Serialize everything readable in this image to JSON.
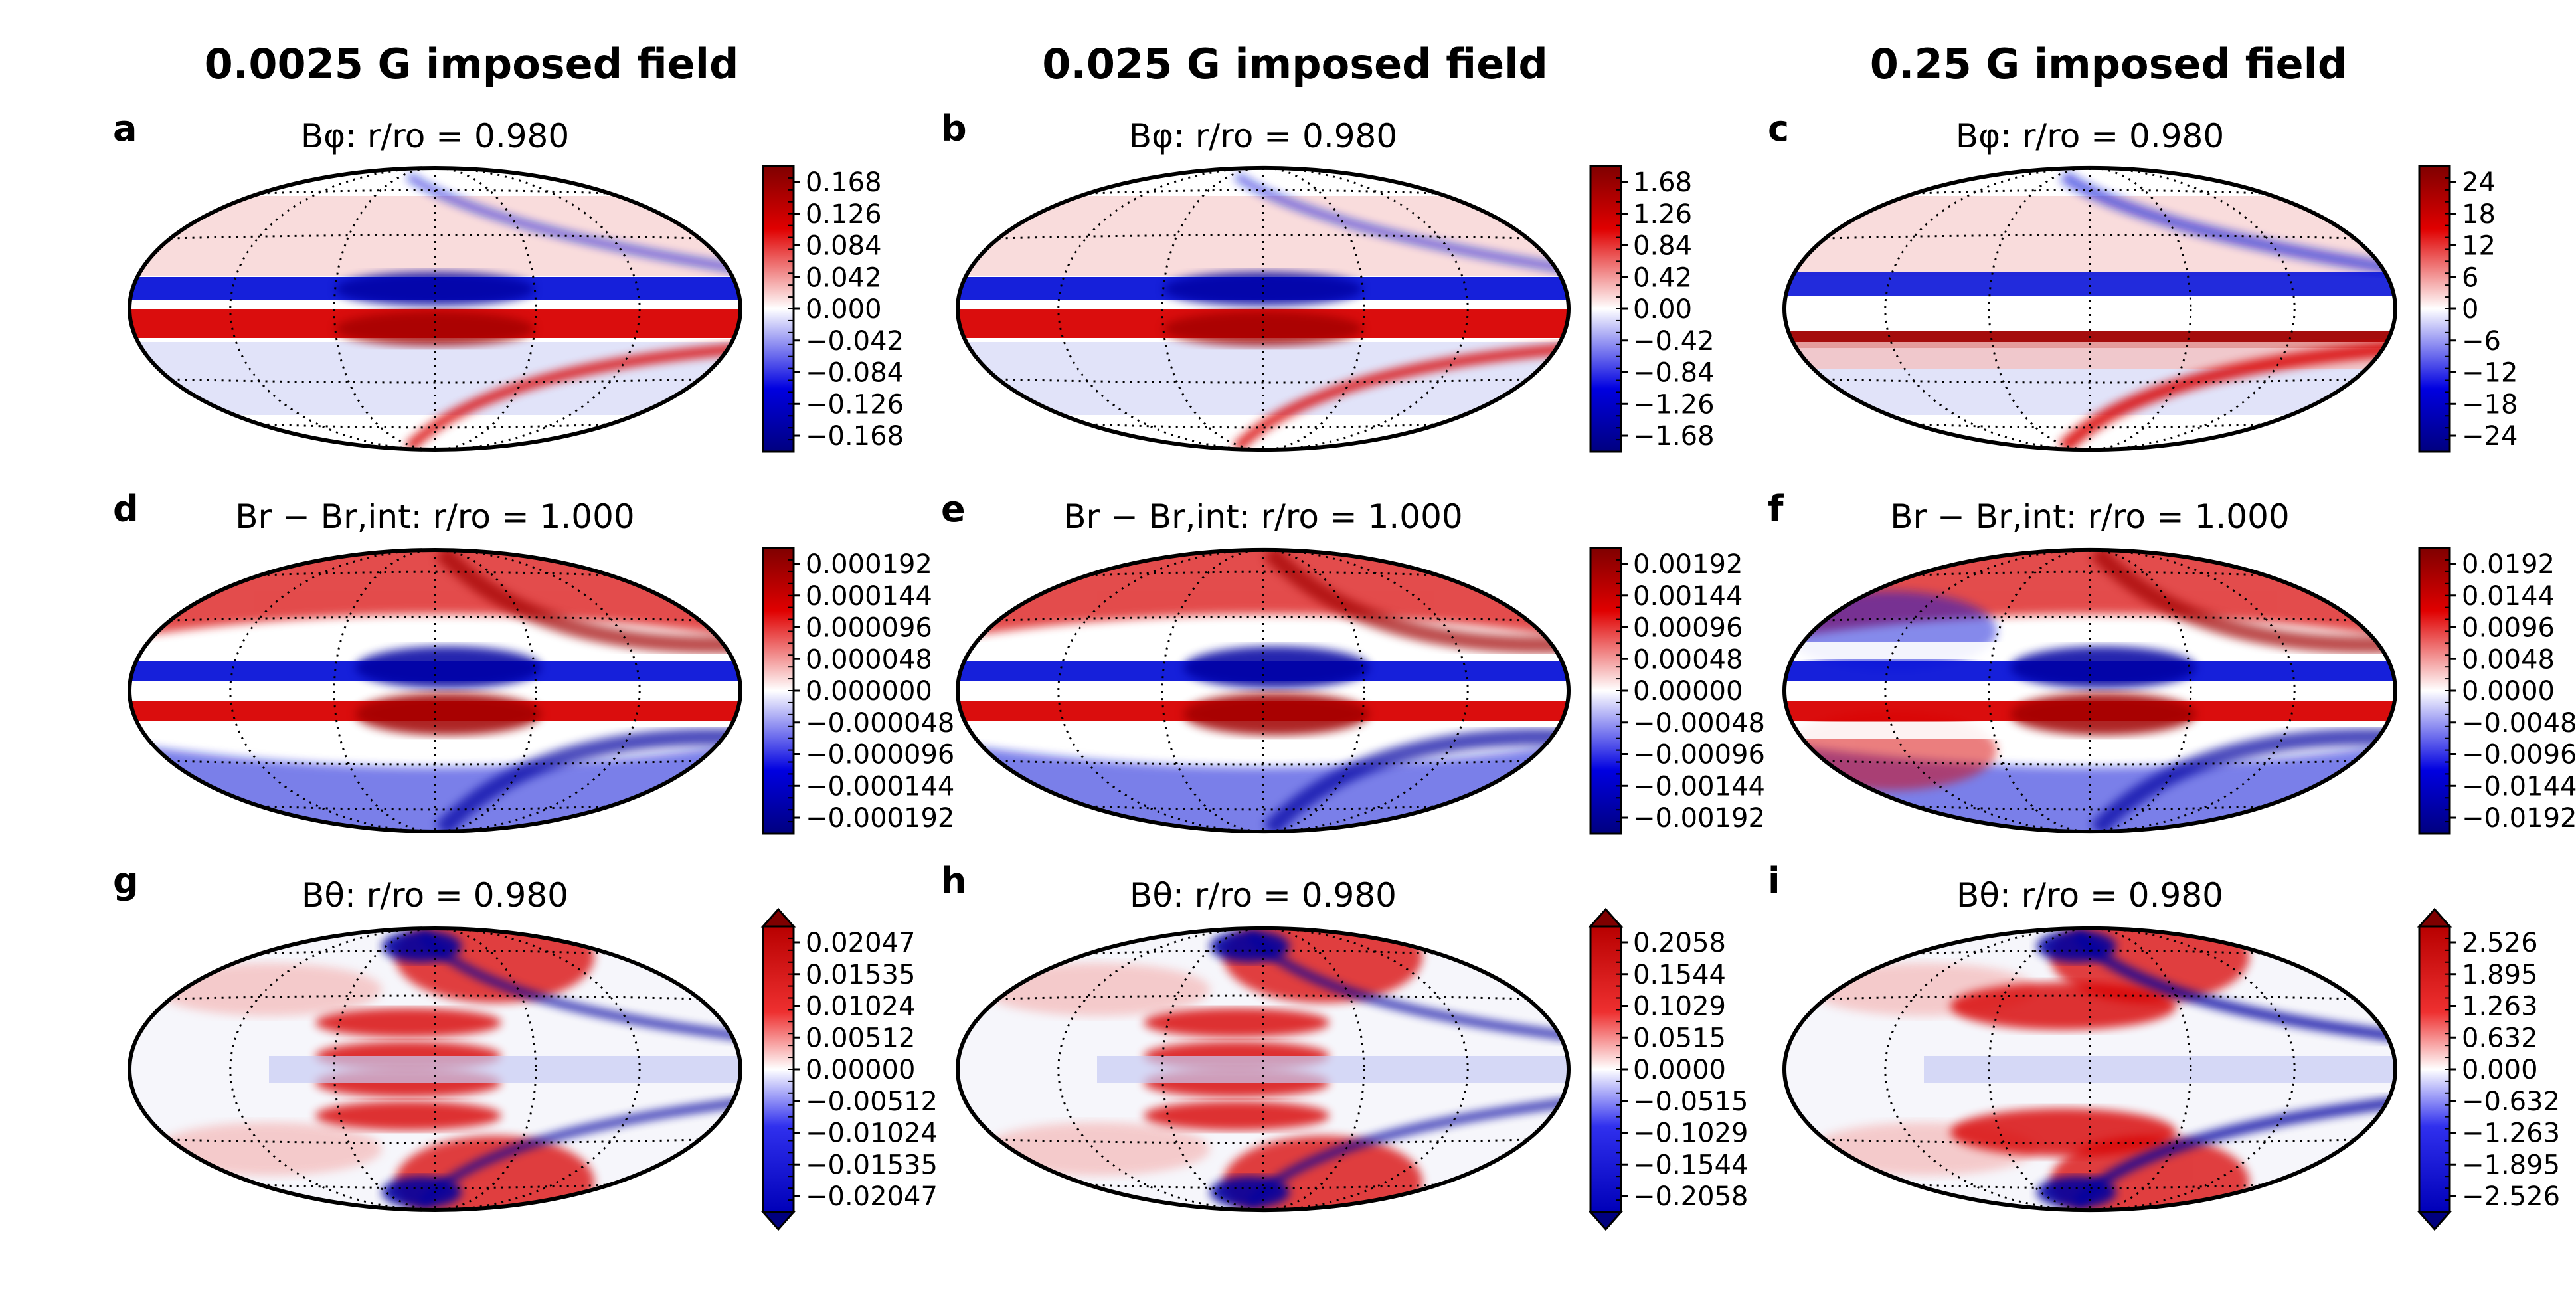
{
  "column_titles": [
    "0.0025 G imposed field",
    "0.025 G imposed field",
    "0.25 G imposed field"
  ],
  "colors": {
    "positive": "#cc0000",
    "negative": "#0000cc",
    "zero": "#ffffff",
    "max_pos": "#7f0000",
    "max_neg": "#00007f"
  },
  "chart_data": [
    {
      "type": "heatmap",
      "panel": "a",
      "title": "Bφ: r/ro = 0.980",
      "projection": "mollweide",
      "pattern": "phi",
      "extend": false,
      "colorbar_ticks": [
        "0.168",
        "0.126",
        "0.084",
        "0.042",
        "0.000",
        "−0.042",
        "−0.084",
        "−0.126",
        "−0.168"
      ]
    },
    {
      "type": "heatmap",
      "panel": "b",
      "title": "Bφ: r/ro = 0.980",
      "projection": "mollweide",
      "pattern": "phi",
      "extend": false,
      "colorbar_ticks": [
        "1.68",
        "1.26",
        "0.84",
        "0.42",
        "0.00",
        "−0.42",
        "−0.84",
        "−1.26",
        "−1.68"
      ]
    },
    {
      "type": "heatmap",
      "panel": "c",
      "title": "Bφ: r/ro = 0.980",
      "projection": "mollweide",
      "pattern": "phi-strong",
      "extend": false,
      "colorbar_ticks": [
        "24",
        "18",
        "12",
        "6",
        "0",
        "−6",
        "−12",
        "−18",
        "−24"
      ]
    },
    {
      "type": "heatmap",
      "panel": "d",
      "title": "Br − Br,int: r/ro = 1.000",
      "projection": "mollweide",
      "pattern": "r",
      "extend": false,
      "colorbar_ticks": [
        "0.000192",
        "0.000144",
        "0.000096",
        "0.000048",
        "0.000000",
        "−0.000048",
        "−0.000096",
        "−0.000144",
        "−0.000192"
      ]
    },
    {
      "type": "heatmap",
      "panel": "e",
      "title": "Br − Br,int: r/ro = 1.000",
      "projection": "mollweide",
      "pattern": "r",
      "extend": false,
      "colorbar_ticks": [
        "0.00192",
        "0.00144",
        "0.00096",
        "0.00048",
        "0.00000",
        "−0.00048",
        "−0.00096",
        "−0.00144",
        "−0.00192"
      ]
    },
    {
      "type": "heatmap",
      "panel": "f",
      "title": "Br − Br,int: r/ro = 1.000",
      "projection": "mollweide",
      "pattern": "r-strong",
      "extend": false,
      "colorbar_ticks": [
        "0.0192",
        "0.0144",
        "0.0096",
        "0.0048",
        "0.0000",
        "−0.0048",
        "−0.0096",
        "−0.0144",
        "−0.0192"
      ]
    },
    {
      "type": "heatmap",
      "panel": "g",
      "title": "Bθ: r/ro = 0.980",
      "projection": "mollweide",
      "pattern": "theta",
      "extend": true,
      "colorbar_ticks": [
        "0.02047",
        "0.01535",
        "0.01024",
        "0.00512",
        "0.00000",
        "−0.00512",
        "−0.01024",
        "−0.01535",
        "−0.02047"
      ]
    },
    {
      "type": "heatmap",
      "panel": "h",
      "title": "Bθ: r/ro = 0.980",
      "projection": "mollweide",
      "pattern": "theta",
      "extend": true,
      "colorbar_ticks": [
        "0.2058",
        "0.1544",
        "0.1029",
        "0.0515",
        "0.0000",
        "−0.0515",
        "−0.1029",
        "−0.1544",
        "−0.2058"
      ]
    },
    {
      "type": "heatmap",
      "panel": "i",
      "title": "Bθ: r/ro = 0.980",
      "projection": "mollweide",
      "pattern": "theta-strong",
      "extend": true,
      "colorbar_ticks": [
        "2.526",
        "1.895",
        "1.263",
        "0.632",
        "0.000",
        "−0.632",
        "−1.263",
        "−1.895",
        "−2.526"
      ]
    }
  ]
}
